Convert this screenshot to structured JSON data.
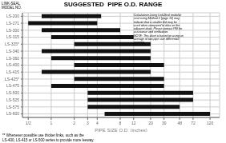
{
  "chart_data": {
    "type": "bar",
    "orientation": "horizontal",
    "title": "SUGGESTED  PIPE O.D. RANGE",
    "x_label": "PIPE SIZE O.D. (inches)",
    "y_label": "LINK-SEAL\nMODEL NO.",
    "annotations": [
      "Calculations using Link-Seal modular\nseal sizing Method 2 (page 12) may\nindicate that a smaller link may be\nused when compared to data on the\nadjacent chart. Please contact PSI for\nassistance and verification.\nNOTE: This chart is based on using an\naverage of two pipe size differential\nopening.",
      "** Whenever possible use thicker links, such as the\nLS-400, LS-415 or LS-500 series to provide more leeway."
    ],
    "categories": [
      "LS-200",
      "LS-271",
      "LS-300",
      "LS-315",
      "LS-325*",
      "LS-340",
      "LS-360",
      "LS-400",
      "LS-415",
      "LS-425*",
      "LS-475",
      "LS-500",
      "LS-525",
      "LS-575",
      "LS-600"
    ],
    "values": [
      [
        0.75,
        4.5
      ],
      [
        0.5,
        4.0
      ],
      [
        0.75,
        8.0
      ],
      [
        1.0,
        12.0
      ],
      [
        2.0,
        20.0
      ],
      [
        0.75,
        20.0
      ],
      [
        1.0,
        20.0
      ],
      [
        2.0,
        30.0
      ],
      [
        0.75,
        20.0
      ],
      [
        2.0,
        30.0
      ],
      [
        1.0,
        30.0
      ],
      [
        3.0,
        72.0
      ],
      [
        3.0,
        72.0
      ],
      [
        3.0,
        48.0
      ],
      [
        5.0,
        120.0
      ]
    ],
    "color": "#111111",
    "log": "x",
    "xlim": [
      0.42,
      160
    ],
    "xticks": [
      {
        "value": 0.5,
        "label": "1/2"
      },
      1,
      2,
      3,
      4,
      8,
      12,
      20,
      30,
      48,
      72,
      120
    ],
    "grid": true
  }
}
